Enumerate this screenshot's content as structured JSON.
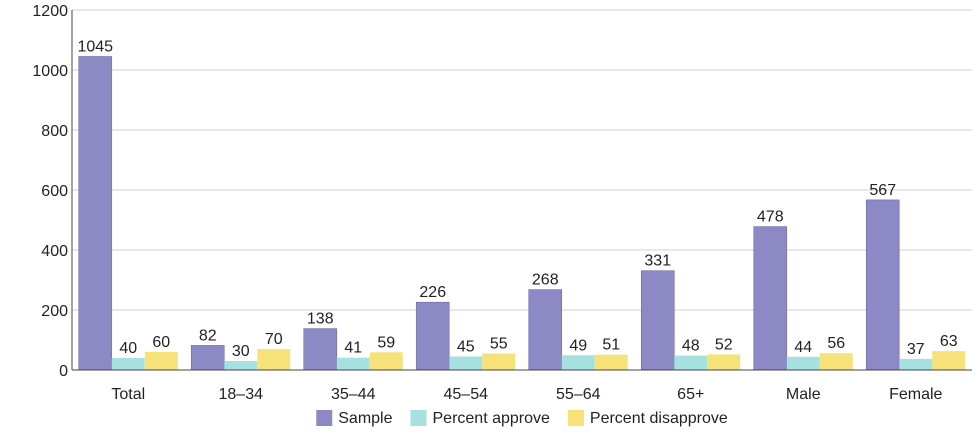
{
  "chart_data": {
    "type": "bar",
    "title": "",
    "xlabel": "",
    "ylabel": "",
    "categories": [
      "Total",
      "18–34",
      "35–44",
      "45–54",
      "55–64",
      "65+",
      "Male",
      "Female"
    ],
    "series": [
      {
        "name": "Sample",
        "color": "#8c89c4",
        "values": [
          1045,
          82,
          138,
          226,
          268,
          331,
          478,
          567
        ]
      },
      {
        "name": "Percent approve",
        "color": "#a6e1df",
        "values": [
          40,
          30,
          41,
          45,
          49,
          48,
          44,
          37
        ]
      },
      {
        "name": "Percent disapprove",
        "color": "#f7e27a",
        "values": [
          60,
          70,
          59,
          55,
          51,
          52,
          56,
          63
        ]
      }
    ],
    "ylim": [
      0,
      1200
    ],
    "yticks": [
      0,
      200,
      400,
      600,
      800,
      1000,
      1200
    ],
    "grid": true,
    "legend_position": "bottom-center"
  }
}
